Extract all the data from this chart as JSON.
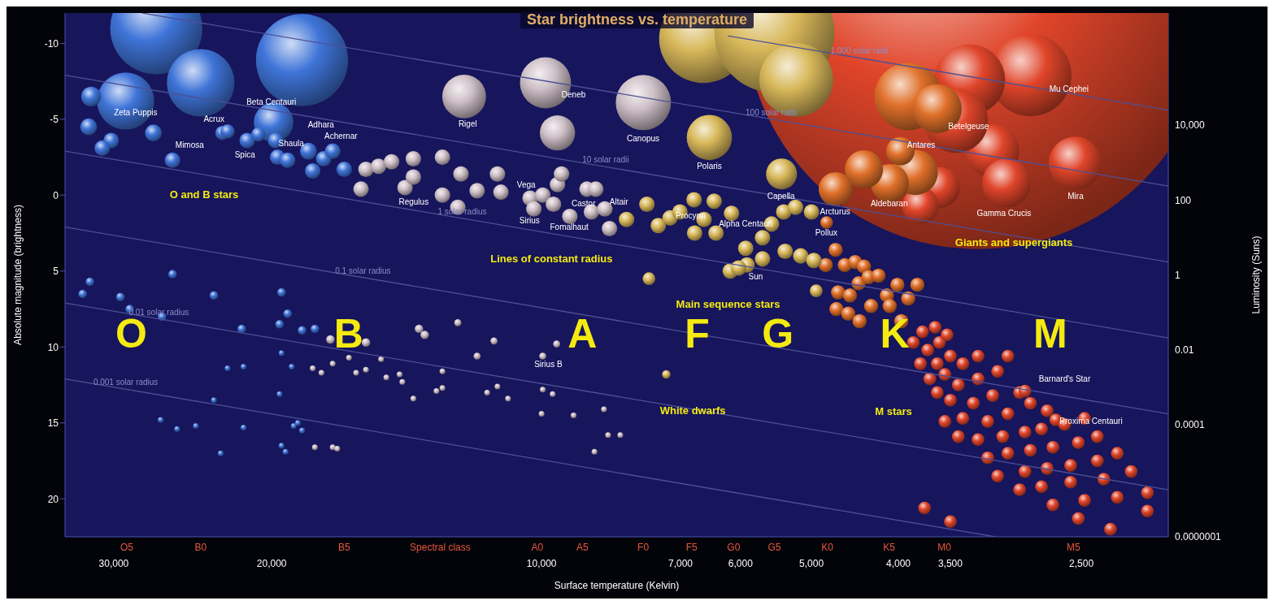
{
  "chart_data": {
    "type": "bubble",
    "title": "Star brightness vs. temperature",
    "xlabel": "Surface temperature (Kelvin)",
    "ylabel": "Luminosity (Suns)",
    "y2label": "Absolute magnitude (brightness)",
    "xlim": [
      34000,
      2000
    ],
    "xticks": [
      {
        "value": 30000,
        "label": "30,000"
      },
      {
        "value": 20000,
        "label": "20,000"
      },
      {
        "value": 10000,
        "label": "10,000"
      },
      {
        "value": 7000,
        "label": "7,000"
      },
      {
        "value": 6000,
        "label": "6,000"
      },
      {
        "value": 5000,
        "label": "5,000"
      },
      {
        "value": 4000,
        "label": "4,000"
      },
      {
        "value": 3500,
        "label": "3,500"
      },
      {
        "value": 2500,
        "label": "2,500"
      }
    ],
    "ylim": [
      1e-07,
      10000000
    ],
    "yticks": [
      {
        "value": 10000,
        "label": "10,000"
      },
      100,
      1,
      0.01,
      0.0001,
      {
        "value": 1e-07,
        "label": "0.0000001"
      }
    ],
    "y2lim": [
      22.5,
      -12
    ],
    "y2ticks": [
      -10,
      -5,
      0,
      5,
      10,
      15,
      20
    ],
    "log": "xy",
    "series": [
      {
        "type": "line",
        "name": "1,000 solar radii",
        "color": "#4d5196",
        "axis": "y2",
        "x": [
          6200,
          2000
        ],
        "values": [
          -10.5,
          -5.6
        ]
      },
      {
        "type": "line",
        "name": "100 solar radii",
        "color": "#4d5196",
        "axis": "y2",
        "x": [
          27900,
          2000
        ],
        "values": [
          -12,
          -0.6
        ]
      },
      {
        "type": "line",
        "name": "10 solar radii",
        "color": "#4d5196",
        "axis": "y2",
        "x": [
          34000,
          2000
        ],
        "values": [
          -7.9,
          4.4
        ]
      },
      {
        "type": "line",
        "name": "1 solar radius",
        "color": "#4d5196",
        "axis": "y2",
        "x": [
          34000,
          2000
        ],
        "values": [
          -2.9,
          9.4
        ]
      },
      {
        "type": "line",
        "name": "0.1 solar radius",
        "color": "#4d5196",
        "axis": "y2",
        "x": [
          34000,
          2000
        ],
        "values": [
          2.1,
          14.4
        ]
      },
      {
        "type": "line",
        "name": "0.01 solar radius",
        "color": "#4d5196",
        "axis": "y2",
        "x": [
          34000,
          2000
        ],
        "values": [
          7.1,
          19.4
        ]
      },
      {
        "type": "line",
        "name": "0.001 solar radius",
        "color": "#4d5196",
        "axis": "y2",
        "x": [
          34000,
          3120
        ],
        "values": [
          12.1,
          22.5
        ]
      },
      {
        "color": "#e0452a",
        "axis": "y2",
        "x": [
          3260,
          2850,
          3330,
          3140,
          3450,
          2540,
          3030,
          3600,
          3780,
          3850,
          3760,
          3640,
          3710,
          3600,
          3530,
          3500,
          3620,
          3780,
          3690,
          3550,
          3390,
          3260,
          3430,
          3260,
          3100,
          3020,
          3620,
          3500,
          3300,
          3140,
          2930,
          2890,
          3550,
          3390,
          3180,
          3020,
          2850,
          2730,
          2670,
          3430,
          3260,
          3060,
          2890,
          2770,
          2610,
          2480,
          3180,
          3020,
          2850,
          2690,
          2520,
          2400,
          3100,
          2890,
          2730,
          2570,
          2400,
          2280,
          2930,
          2770,
          2570,
          2360,
          2200,
          2690,
          2480,
          2280,
          2110,
          3740,
          3500,
          2520,
          2320,
          2110
        ],
        "values": [
          -11.8,
          -7.9,
          -7.6,
          -2.9,
          -4.9,
          -2.1,
          -0.8,
          -0.5,
          0.7,
          9.7,
          9.0,
          8.7,
          10.2,
          9.7,
          9.2,
          10.6,
          11.1,
          11.1,
          12.1,
          11.8,
          11.1,
          10.6,
          12.5,
          12.1,
          11.6,
          10.6,
          13.0,
          13.5,
          13.7,
          13.2,
          13.0,
          12.9,
          14.9,
          14.7,
          14.9,
          14.4,
          13.7,
          14.2,
          14.8,
          15.9,
          16.1,
          15.9,
          15.6,
          15.4,
          15.1,
          14.7,
          17.3,
          17.0,
          16.8,
          16.6,
          16.3,
          15.9,
          18.5,
          18.2,
          18.0,
          17.8,
          17.5,
          17.0,
          19.4,
          19.2,
          18.9,
          18.7,
          18.2,
          20.4,
          20.1,
          19.9,
          19.6,
          20.6,
          21.5,
          21.3,
          22.0,
          20.8
        ],
        "sizes": [
          1,
          0.031,
          0.023,
          0.013,
          0.019,
          0.013,
          0.011,
          0.0077,
          0.0062,
          0.00074,
          0.00074,
          0.00074,
          0.00074,
          0.00074,
          0.00074,
          0.00074,
          0.00074,
          0.00074,
          0.00074,
          0.00074,
          0.00074,
          0.00074,
          0.00074,
          0.00074,
          0.00074,
          0.00074,
          0.00074,
          0.00074,
          0.00074,
          0.00074,
          0.00074,
          0.00074,
          0.00074,
          0.00074,
          0.00074,
          0.00074,
          0.00074,
          0.00074,
          0.00074,
          0.00074,
          0.00074,
          0.00074,
          0.00074,
          0.00074,
          0.00074,
          0.00074,
          0.00074,
          0.00074,
          0.00074,
          0.00074,
          0.00074,
          0.00074,
          0.00074,
          0.00074,
          0.00074,
          0.00074,
          0.00074,
          0.00074,
          0.00074,
          0.00074,
          0.00074,
          0.00074,
          0.00074,
          0.00074,
          0.00074,
          0.00074,
          0.00074,
          0.00074,
          0.00074,
          0.00074,
          0.00074,
          0.00074
        ]
      },
      {
        "color": "#e0702a",
        "axis": "y2",
        "x": [
          3900,
          3830,
          4090,
          4370,
          3980,
          4700,
          4810,
          4820,
          4700,
          4590,
          4470,
          4370,
          4670,
          4530,
          4430,
          4320,
          4210,
          4690,
          4550,
          4420,
          4290,
          4120,
          4010,
          4090,
          3970,
          3900,
          3810,
          3620
        ],
        "values": [
          -6.5,
          -1.5,
          -0.8,
          -1.7,
          -2.9,
          -0.4,
          1.8,
          4.6,
          3.6,
          4.6,
          4.4,
          4.7,
          6.4,
          6.6,
          5.8,
          5.4,
          5.3,
          7.5,
          7.8,
          8.3,
          7.3,
          6.6,
          5.9,
          7.3,
          8.3,
          6.8,
          5.9,
          -5.7
        ],
        "sizes": [
          0.021,
          0.0094,
          0.0067,
          0.0067,
          0.0037,
          0.0053,
          0.00074,
          0.00092,
          0.00092,
          0.00092,
          0.00092,
          0.00092,
          0.00092,
          0.00092,
          0.00092,
          0.00092,
          0.00092,
          0.00092,
          0.00092,
          0.00092,
          0.00092,
          0.00092,
          0.00092,
          0.00092,
          0.00092,
          0.00092,
          0.00092,
          0.011
        ]
      },
      {
        "color": "#d8b85a",
        "axis": "y2",
        "x": [
          6600,
          5500,
          5200,
          6500,
          5400,
          8040,
          7630,
          7590,
          7410,
          7190,
          7010,
          6760,
          6750,
          6590,
          6420,
          6390,
          6140,
          5920,
          5900,
          6160,
          6030,
          5670,
          5540,
          5370,
          5210,
          5000,
          5350,
          5140,
          4970,
          4940,
          5670,
          7260
        ],
        "values": [
          -10.3,
          -10.7,
          -7.6,
          -3.8,
          -1.4,
          1.6,
          0.6,
          5.5,
          2.0,
          1.5,
          1.1,
          0.3,
          2.5,
          1.6,
          0.4,
          2.5,
          1.2,
          3.5,
          4.6,
          5.0,
          4.8,
          2.8,
          1.9,
          1.1,
          0.8,
          1.1,
          3.7,
          4.0,
          4.3,
          6.3,
          4.2,
          11.8
        ],
        "sizes": [
          0.036,
          0.066,
          0.025,
          0.0094,
          0.0044,
          0.0011,
          0.0011,
          0.00074,
          0.0011,
          0.0011,
          0.0011,
          0.0011,
          0.0011,
          0.0011,
          0.0011,
          0.0011,
          0.0011,
          0.0011,
          0.0011,
          0.0011,
          0.0011,
          0.0011,
          0.0011,
          0.0011,
          0.0011,
          0.0011,
          0.0011,
          0.0011,
          0.0011,
          0.00074,
          0.0011,
          0.00033
        ]
      },
      {
        "color": "#cdbfc6",
        "axis": "y2",
        "x": [
          12200,
          9900,
          9600,
          7700,
          15700,
          15900,
          15200,
          14700,
          14200,
          13900,
          13900,
          12900,
          12900,
          12300,
          12400,
          11800,
          11200,
          11100,
          10300,
          9970,
          9700,
          10200,
          9600,
          9500,
          9300,
          8900,
          8700,
          8800,
          8400,
          8500,
          17200,
          15700,
          13700,
          13500,
          12400,
          11300,
          11800,
          9970,
          9620,
          18000,
          17600,
          17100,
          16400,
          16100,
          15700,
          15100,
          14900,
          14400,
          14300,
          12900,
          12900,
          13100,
          13900,
          11500,
          11200,
          10900,
          9970,
          9720,
          10000,
          9210,
          8520,
          8430,
          8170,
          8730,
          17900,
          17100,
          16900
        ],
        "values": [
          -6.5,
          -7.4,
          -4.1,
          -6.1,
          -1.7,
          -0.4,
          -1.9,
          -2.2,
          -0.5,
          -2.4,
          -1.2,
          -2.5,
          0.0,
          -1.4,
          0.8,
          -0.3,
          -1.4,
          -0.2,
          0.2,
          0.0,
          0.6,
          0.9,
          -0.7,
          -1.4,
          1.4,
          -0.4,
          -0.4,
          1.1,
          2.2,
          0.9,
          9.5,
          9.7,
          8.8,
          9.2,
          8.4,
          9.6,
          10.6,
          10.6,
          9.8,
          11.4,
          11.7,
          11.1,
          10.7,
          11.7,
          11.5,
          10.8,
          12.0,
          11.8,
          12.3,
          11.6,
          12.7,
          12.9,
          13.4,
          13.0,
          12.6,
          13.4,
          12.8,
          13.1,
          14.4,
          14.5,
          14.1,
          15.8,
          15.8,
          16.9,
          16.6,
          16.6,
          16.7
        ],
        "sizes": [
          0.0088,
          0.012,
          0.0057,
          0.014,
          0.0011,
          0.0011,
          0.0011,
          0.0011,
          0.0011,
          0.0011,
          0.0011,
          0.0011,
          0.0011,
          0.0011,
          0.0011,
          0.0011,
          0.0011,
          0.0011,
          0.0011,
          0.0011,
          0.0011,
          0.0011,
          0.0011,
          0.0011,
          0.0011,
          0.0011,
          0.0011,
          0.0011,
          0.0011,
          0.0011,
          0.00033,
          0.00033,
          0.00033,
          0.00033,
          0.00023,
          0.00023,
          0.00023,
          0.00023,
          0.00023,
          0.00015,
          0.00015,
          0.00015,
          0.00015,
          0.00015,
          0.00015,
          0.00015,
          0.00015,
          0.00015,
          0.00015,
          0.00015,
          0.00015,
          0.00015,
          0.00015,
          0.00015,
          0.00015,
          0.00015,
          0.00015,
          0.00015,
          0.00015,
          0.00015,
          0.00015,
          0.00015,
          0.00015,
          0.00015,
          0.00015,
          0.00015,
          0.00015
        ]
      },
      {
        "color": "#3f74d8",
        "axis": "y2",
        "x": [
          26900,
          18500,
          24000,
          29100,
          31800,
          19900,
          32000,
          27100,
          30200,
          30900,
          22700,
          21300,
          19800,
          25800,
          19700,
          19200,
          22400,
          20700,
          18200,
          18000,
          17500,
          17100,
          16600,
          31900,
          32500,
          29500,
          25800,
          28800,
          26500,
          23200,
          19500,
          19200,
          19600,
          21600,
          18500,
          17900,
          19500,
          22400,
          21500,
          19000,
          19600,
          23200,
          26600,
          25500,
          24300,
          21500,
          18900,
          18700,
          18500,
          22800,
          19500,
          19300
        ],
        "values": [
          -11.0,
          -8.9,
          -7.4,
          -6.2,
          -6.5,
          -4.8,
          -4.5,
          -4.1,
          -3.6,
          -3.1,
          -4.1,
          -3.6,
          -3.6,
          -2.3,
          -2.5,
          -2.3,
          -4.2,
          -4.0,
          -2.9,
          -1.6,
          -2.4,
          -2.9,
          -1.7,
          5.7,
          6.5,
          6.7,
          5.2,
          7.5,
          8.0,
          6.6,
          6.4,
          7.8,
          8.5,
          8.8,
          8.9,
          8.8,
          10.4,
          11.4,
          11.3,
          11.3,
          13.1,
          13.5,
          14.8,
          15.4,
          15.2,
          15.3,
          15.2,
          15.0,
          15.5,
          17.0,
          16.5,
          16.9
        ],
        "sizes": [
          0.039,
          0.039,
          0.021,
          0.015,
          0.0018,
          0.0072,
          0.0013,
          0.0013,
          0.0011,
          0.0011,
          0.00092,
          0.0011,
          0.0011,
          0.0011,
          0.0011,
          0.0011,
          0.00092,
          0.00092,
          0.0013,
          0.0011,
          0.0011,
          0.0011,
          0.0011,
          0.00033,
          0.00033,
          0.00033,
          0.00033,
          0.00033,
          0.00033,
          0.00033,
          0.00033,
          0.00033,
          0.00033,
          0.00033,
          0.00033,
          0.00033,
          0.00015,
          0.00015,
          0.00015,
          0.00015,
          0.00015,
          0.00015,
          0.00015,
          0.00015,
          0.00015,
          0.00015,
          0.00015,
          0.00015,
          0.00015,
          0.00015,
          0.00015,
          0.00015
        ]
      }
    ],
    "annotations": [
      "Zeta Puppis",
      "Beta Centauri",
      "Acrux",
      "Adhara",
      "Mimosa",
      "Spica",
      "Shaula",
      "Achernar",
      "Rigel",
      "Deneb",
      "Canopus",
      "Polaris",
      "Regulus",
      "Vega",
      "Castor",
      "Sirius",
      "Fomalhaut",
      "Altair",
      "Procyon",
      "Alpha Centauri",
      "Sun",
      "Capella",
      "Arcturus",
      "Pollux",
      "Aldebaran",
      "Gamma Crucis",
      "Mira",
      "Antares",
      "Betelgeuse",
      "Mu Cephei",
      "Sirius B",
      "Barnard's Star",
      "Proxima Centauri",
      "O and B stars",
      "Lines of constant radius",
      "Main sequence stars",
      "White dwarfs",
      "M stars",
      "Giants and supergiants",
      "O",
      "B",
      "A",
      "F",
      "G",
      "K",
      "M",
      "O5",
      "B0",
      "B5",
      "Spectral class",
      "A0",
      "A5",
      "F0",
      "F5",
      "G0",
      "G5",
      "K0",
      "K5",
      "M0",
      "M5"
    ]
  }
}
